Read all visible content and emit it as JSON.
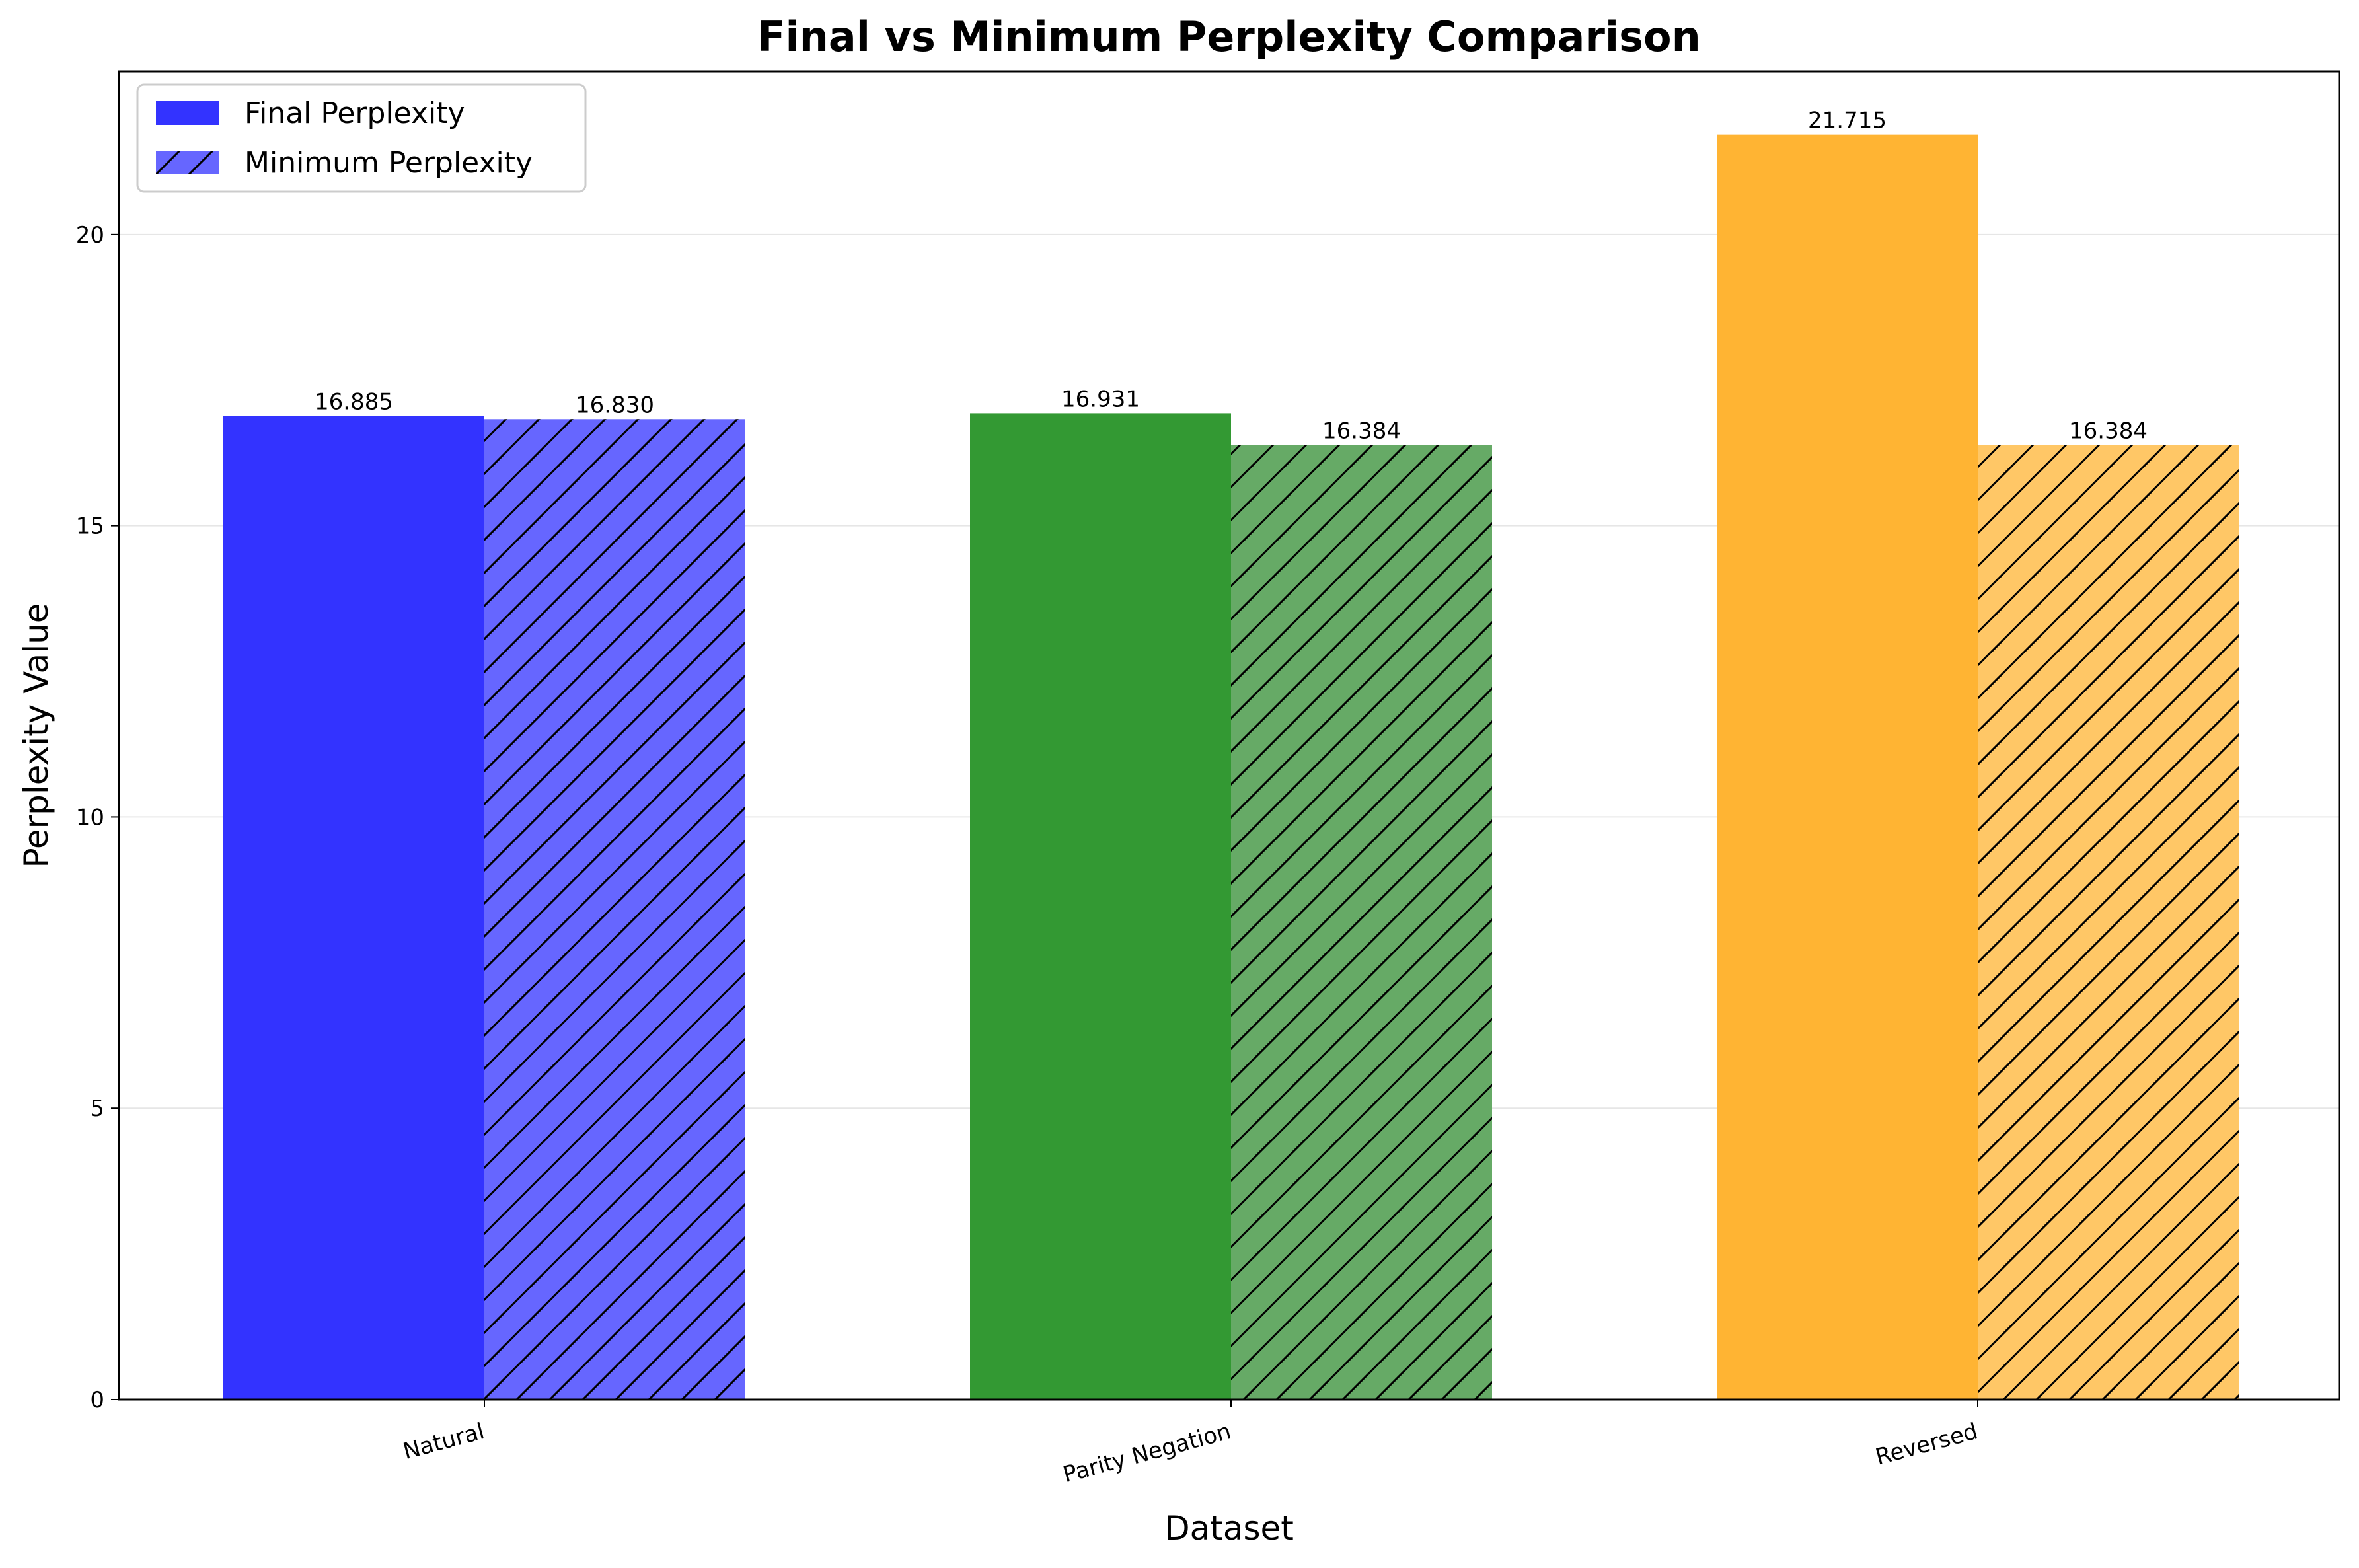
{
  "chart_data": {
    "type": "bar",
    "title": "Final vs Minimum Perplexity Comparison",
    "xlabel": "Dataset",
    "ylabel": "Perplexity Value",
    "categories": [
      "Natural",
      "Parity Negation",
      "Reversed"
    ],
    "series": [
      {
        "name": "Final Perplexity",
        "values": [
          16.885,
          16.931,
          21.715
        ],
        "labels": [
          "16.885",
          "16.931",
          "21.715"
        ],
        "hatched": false
      },
      {
        "name": "Minimum Perplexity",
        "values": [
          16.83,
          16.384,
          16.384
        ],
        "labels": [
          "16.830",
          "16.384",
          "16.384"
        ],
        "hatched": true
      }
    ],
    "bar_colors": {
      "final": [
        "#3333ff",
        "#339933",
        "#ffb433"
      ],
      "minimum": [
        "#6666ff",
        "#66aa66",
        "#ffc766"
      ],
      "legend_final": "#3333ff",
      "legend_minimum": "#6666ff"
    },
    "ylim": [
      0,
      22.8
    ],
    "yticks": [
      0,
      5,
      10,
      15,
      20
    ],
    "ytick_labels": [
      "0",
      "5",
      "10",
      "15",
      "20"
    ],
    "grid": "y",
    "legend_position": "top-left"
  }
}
